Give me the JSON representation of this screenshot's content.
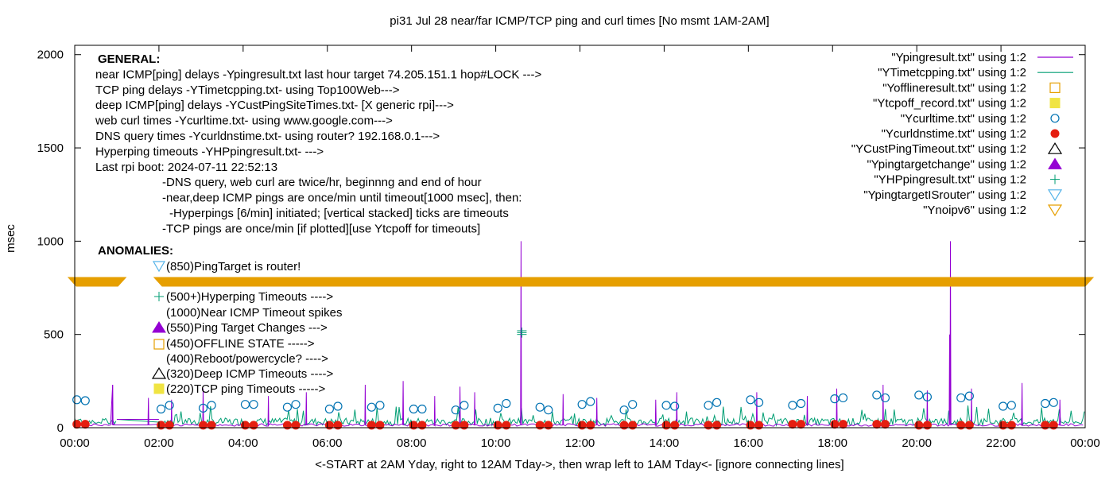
{
  "colors": {
    "ping": "#9400d3",
    "tcp": "#009e73",
    "offline": "#e69f00",
    "tcpoff": "#f0e442",
    "curl": "#0072b2",
    "dns": "#e51e10",
    "hyper": "#009e73",
    "pingTargetIsRouter": "#56b4e9",
    "noipv6": "#e69f00"
  },
  "chart_data": {
    "type": "line",
    "title": "pi31 Jul 28  near/far ICMP/TCP ping and curl times [No msmt 1AM-2AM]",
    "xlabel": "<-START at 2AM Yday, right to 12AM Tday->, then wrap left to 1AM Tday<- [ignore connecting lines]",
    "ylabel": "msec",
    "xlim": [
      "00:00",
      "24:00"
    ],
    "ylim": [
      0,
      2050
    ],
    "x_ticks": [
      "00:00",
      "02:00",
      "04:00",
      "06:00",
      "08:00",
      "10:00",
      "12:00",
      "14:00",
      "16:00",
      "18:00",
      "20:00",
      "22:00",
      "00:00"
    ],
    "y_ticks": [
      0,
      500,
      1000,
      1500,
      2000
    ],
    "grid": false,
    "legend_position": "top-right",
    "legend": [
      {
        "label": "\"Ypingresult.txt\" using 1:2",
        "kind": "line",
        "colorKey": "ping"
      },
      {
        "label": "\"YTimetcpping.txt\" using 1:2",
        "kind": "line",
        "colorKey": "tcp"
      },
      {
        "label": "\"Yofflineresult.txt\" using 1:2",
        "kind": "square-open",
        "colorKey": "offline"
      },
      {
        "label": "\"Ytcpoff_record.txt\" using 1:2",
        "kind": "square-filled",
        "colorKey": "tcpoff"
      },
      {
        "label": "\"Ycurltime.txt\" using 1:2",
        "kind": "circle-open",
        "colorKey": "curl"
      },
      {
        "label": "\"Ycurldnstime.txt\" using 1:2",
        "kind": "circle-filled",
        "colorKey": "dns"
      },
      {
        "label": "\"YCustPingTimeout.txt\" using 1:2",
        "kind": "triangle-open",
        "colorKey": "ping_black"
      },
      {
        "label": "\"Ypingtargetchange\" using 1:2",
        "kind": "triangle-filled",
        "colorKey": "ping"
      },
      {
        "label": "\"YHPpingresult.txt\" using 1:2",
        "kind": "plus",
        "colorKey": "hyper"
      },
      {
        "label": "\"YpingtargetISrouter\" using 1:2",
        "kind": "triangle-down-open",
        "colorKey": "pingTargetIsRouter"
      },
      {
        "label": "\"Ynoipv6\" using 1:2",
        "kind": "triangle-down-open",
        "colorKey": "noipv6"
      }
    ],
    "annotations_general": [
      "GENERAL:",
      "near ICMP[ping] delays -Ypingresult.txt last hour target 74.205.151.1 hop#LOCK --->",
      "TCP ping delays -YTimetcpping.txt- using Top100Web--->",
      "deep ICMP[ping] delays -YCustPingSiteTimes.txt- [X generic rpi]--->",
      "web curl times -Ycurltime.txt- using www.google.com--->",
      "DNS query times -Ycurldnstime.txt- using router? 192.168.0.1--->",
      "Hyperping timeouts -YHPpingresult.txt- --->",
      "Last rpi boot: 2024-07-11 22:52:13",
      "-DNS query, web curl are twice/hr, beginnng and end of hour",
      "-near,deep ICMP pings are once/min until timeout[1000 msec], then:",
      "-Hyperpings [6/min] initiated; [vertical stacked] ticks are timeouts",
      "-TCP pings are once/min [if plotted][use Ytcpoff for timeouts]"
    ],
    "annotations_anomalies": [
      {
        "text": "ANOMALIES:",
        "marker": "none"
      },
      {
        "text": "(850)PingTarget is router!",
        "marker": "triangle-down-open-blue"
      },
      {
        "text": "(500+)Hyperping Timeouts ---->",
        "marker": "plus"
      },
      {
        "text": "(1000)Near ICMP Timeout spikes",
        "marker": "none"
      },
      {
        "text": "(550)Ping Target Changes --->",
        "marker": "triangle-filled"
      },
      {
        "text": "(450)OFFLINE STATE ----->",
        "marker": "square-open"
      },
      {
        "text": "(400)Reboot/powercycle? ---->",
        "marker": "none"
      },
      {
        "text": "(320)Deep ICMP Timeouts ---->",
        "marker": "triangle-open"
      },
      {
        "text": "(220)TCP ping Timeouts ----->",
        "marker": "square-filled"
      }
    ],
    "noipv6_band": {
      "y": 780,
      "gaps_hours": [
        [
          1.1,
          2.0
        ]
      ]
    },
    "ping_spikes": [
      {
        "x": 0.9,
        "y": 230
      },
      {
        "x": 1.75,
        "y": 160
      },
      {
        "x": 2.3,
        "y": 150
      },
      {
        "x": 3.05,
        "y": 210
      },
      {
        "x": 4.6,
        "y": 170
      },
      {
        "x": 5.5,
        "y": 190
      },
      {
        "x": 6.9,
        "y": 230
      },
      {
        "x": 7.8,
        "y": 250
      },
      {
        "x": 8.55,
        "y": 170
      },
      {
        "x": 9.15,
        "y": 220
      },
      {
        "x": 9.5,
        "y": 190
      },
      {
        "x": 10.6,
        "y": 1000
      },
      {
        "x": 11.6,
        "y": 180
      },
      {
        "x": 12.4,
        "y": 160
      },
      {
        "x": 13.8,
        "y": 150
      },
      {
        "x": 14.3,
        "y": 190
      },
      {
        "x": 16.2,
        "y": 190
      },
      {
        "x": 17.4,
        "y": 170
      },
      {
        "x": 18.1,
        "y": 210
      },
      {
        "x": 19.2,
        "y": 230
      },
      {
        "x": 20.25,
        "y": 200
      },
      {
        "x": 20.8,
        "y": 1000
      },
      {
        "x": 20.78,
        "y": 500
      },
      {
        "x": 21.3,
        "y": 210
      },
      {
        "x": 22.5,
        "y": 240
      },
      {
        "x": 23.4,
        "y": 150
      }
    ],
    "hyperping_timeouts": [
      {
        "x": 10.62,
        "y": 520
      },
      {
        "x": 10.62,
        "y": 510
      },
      {
        "x": 10.62,
        "y": 500
      }
    ],
    "curl_times": [
      {
        "x": 0.05,
        "y": 150
      },
      {
        "x": 0.25,
        "y": 145
      },
      {
        "x": 2.05,
        "y": 100
      },
      {
        "x": 2.25,
        "y": 120
      },
      {
        "x": 3.05,
        "y": 105
      },
      {
        "x": 3.25,
        "y": 120
      },
      {
        "x": 4.05,
        "y": 125
      },
      {
        "x": 4.25,
        "y": 125
      },
      {
        "x": 5.05,
        "y": 110
      },
      {
        "x": 5.25,
        "y": 125
      },
      {
        "x": 6.05,
        "y": 100
      },
      {
        "x": 6.25,
        "y": 115
      },
      {
        "x": 7.05,
        "y": 110
      },
      {
        "x": 7.25,
        "y": 120
      },
      {
        "x": 8.05,
        "y": 100
      },
      {
        "x": 8.25,
        "y": 100
      },
      {
        "x": 9.05,
        "y": 95
      },
      {
        "x": 9.25,
        "y": 120
      },
      {
        "x": 10.05,
        "y": 105
      },
      {
        "x": 10.25,
        "y": 130
      },
      {
        "x": 11.05,
        "y": 110
      },
      {
        "x": 11.25,
        "y": 95
      },
      {
        "x": 12.05,
        "y": 125
      },
      {
        "x": 12.25,
        "y": 140
      },
      {
        "x": 13.05,
        "y": 95
      },
      {
        "x": 13.25,
        "y": 125
      },
      {
        "x": 14.05,
        "y": 120
      },
      {
        "x": 14.25,
        "y": 115
      },
      {
        "x": 15.05,
        "y": 120
      },
      {
        "x": 15.25,
        "y": 135
      },
      {
        "x": 16.05,
        "y": 150
      },
      {
        "x": 16.25,
        "y": 135
      },
      {
        "x": 17.05,
        "y": 120
      },
      {
        "x": 17.25,
        "y": 130
      },
      {
        "x": 18.05,
        "y": 155
      },
      {
        "x": 18.25,
        "y": 160
      },
      {
        "x": 19.05,
        "y": 175
      },
      {
        "x": 19.25,
        "y": 160
      },
      {
        "x": 20.05,
        "y": 175
      },
      {
        "x": 20.25,
        "y": 165
      },
      {
        "x": 21.05,
        "y": 160
      },
      {
        "x": 21.25,
        "y": 170
      },
      {
        "x": 22.05,
        "y": 115
      },
      {
        "x": 22.25,
        "y": 120
      },
      {
        "x": 23.05,
        "y": 130
      },
      {
        "x": 23.25,
        "y": 135
      }
    ],
    "dns_times": [
      {
        "x": 0.05,
        "y": 10
      },
      {
        "x": 0.25,
        "y": 10
      },
      {
        "x": 2.05,
        "y": 5
      },
      {
        "x": 2.25,
        "y": 5
      },
      {
        "x": 3.05,
        "y": 5
      },
      {
        "x": 3.25,
        "y": 5
      },
      {
        "x": 4.05,
        "y": 5
      },
      {
        "x": 4.25,
        "y": 5
      },
      {
        "x": 5.05,
        "y": 5
      },
      {
        "x": 5.25,
        "y": 5
      },
      {
        "x": 6.05,
        "y": 5
      },
      {
        "x": 6.25,
        "y": 5
      },
      {
        "x": 7.05,
        "y": 5
      },
      {
        "x": 7.25,
        "y": 5
      },
      {
        "x": 8.05,
        "y": 5
      },
      {
        "x": 8.25,
        "y": 5
      },
      {
        "x": 9.05,
        "y": 5
      },
      {
        "x": 9.25,
        "y": 5
      },
      {
        "x": 10.05,
        "y": 5
      },
      {
        "x": 10.25,
        "y": 5
      },
      {
        "x": 11.05,
        "y": 5
      },
      {
        "x": 11.25,
        "y": 5
      },
      {
        "x": 12.05,
        "y": 5
      },
      {
        "x": 12.25,
        "y": 5
      },
      {
        "x": 13.05,
        "y": 5
      },
      {
        "x": 13.25,
        "y": 5
      },
      {
        "x": 14.05,
        "y": 5
      },
      {
        "x": 14.25,
        "y": 5
      },
      {
        "x": 15.05,
        "y": 5
      },
      {
        "x": 15.25,
        "y": 5
      },
      {
        "x": 16.05,
        "y": 5
      },
      {
        "x": 16.25,
        "y": 5
      },
      {
        "x": 17.05,
        "y": 10
      },
      {
        "x": 17.25,
        "y": 10
      },
      {
        "x": 18.05,
        "y": 10
      },
      {
        "x": 18.25,
        "y": 10
      },
      {
        "x": 19.05,
        "y": 10
      },
      {
        "x": 19.25,
        "y": 10
      },
      {
        "x": 20.05,
        "y": 5
      },
      {
        "x": 20.25,
        "y": 5
      },
      {
        "x": 21.05,
        "y": 5
      },
      {
        "x": 21.25,
        "y": 5
      },
      {
        "x": 22.05,
        "y": 5
      },
      {
        "x": 22.25,
        "y": 5
      },
      {
        "x": 23.05,
        "y": 5
      },
      {
        "x": 23.25,
        "y": 5
      }
    ]
  }
}
